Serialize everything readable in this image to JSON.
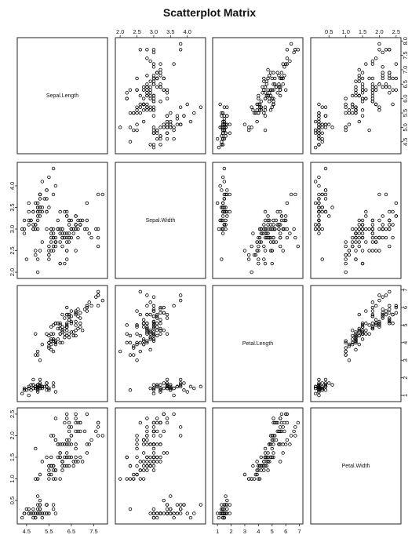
{
  "chart_data": {
    "type": "scatter",
    "title": "Scatterplot Matrix",
    "variables": [
      {
        "name": "Sepal.Length",
        "range": [
          4.3,
          7.9
        ],
        "ticks": [
          4.5,
          5.5,
          6.5,
          7.5
        ],
        "ticks_outer": [
          4.5,
          5.0,
          5.5,
          6.0,
          6.5,
          7.0,
          7.5,
          8.0
        ]
      },
      {
        "name": "Sepal.Width",
        "range": [
          2.0,
          4.4
        ],
        "ticks": [
          2.0,
          2.5,
          3.0,
          3.5,
          4.0
        ]
      },
      {
        "name": "Petal.Length",
        "range": [
          1.0,
          6.9
        ],
        "ticks": [
          1,
          2,
          3,
          4,
          5,
          6,
          7
        ]
      },
      {
        "name": "Petal.Width",
        "range": [
          0.1,
          2.5
        ],
        "ticks": [
          0.5,
          1.0,
          1.5,
          2.0,
          2.5
        ]
      }
    ],
    "points": [
      [
        5.1,
        3.5,
        1.4,
        0.2
      ],
      [
        4.9,
        3.0,
        1.4,
        0.2
      ],
      [
        4.7,
        3.2,
        1.3,
        0.2
      ],
      [
        4.6,
        3.1,
        1.5,
        0.2
      ],
      [
        5.0,
        3.6,
        1.4,
        0.2
      ],
      [
        5.4,
        3.9,
        1.7,
        0.4
      ],
      [
        4.6,
        3.4,
        1.4,
        0.3
      ],
      [
        5.0,
        3.4,
        1.5,
        0.2
      ],
      [
        4.4,
        2.9,
        1.4,
        0.2
      ],
      [
        4.9,
        3.1,
        1.5,
        0.1
      ],
      [
        5.4,
        3.7,
        1.5,
        0.2
      ],
      [
        4.8,
        3.4,
        1.6,
        0.2
      ],
      [
        4.8,
        3.0,
        1.4,
        0.1
      ],
      [
        4.3,
        3.0,
        1.1,
        0.1
      ],
      [
        5.8,
        4.0,
        1.2,
        0.2
      ],
      [
        5.7,
        4.4,
        1.5,
        0.4
      ],
      [
        5.4,
        3.9,
        1.3,
        0.4
      ],
      [
        5.1,
        3.5,
        1.4,
        0.3
      ],
      [
        5.7,
        3.8,
        1.7,
        0.3
      ],
      [
        5.1,
        3.8,
        1.5,
        0.3
      ],
      [
        5.4,
        3.4,
        1.7,
        0.2
      ],
      [
        5.1,
        3.7,
        1.5,
        0.4
      ],
      [
        4.6,
        3.6,
        1.0,
        0.2
      ],
      [
        5.1,
        3.3,
        1.7,
        0.5
      ],
      [
        4.8,
        3.4,
        1.9,
        0.2
      ],
      [
        5.0,
        3.0,
        1.6,
        0.2
      ],
      [
        5.0,
        3.4,
        1.6,
        0.4
      ],
      [
        5.2,
        3.5,
        1.5,
        0.2
      ],
      [
        5.2,
        3.4,
        1.4,
        0.2
      ],
      [
        4.7,
        3.2,
        1.6,
        0.2
      ],
      [
        4.8,
        3.1,
        1.6,
        0.2
      ],
      [
        5.4,
        3.4,
        1.5,
        0.4
      ],
      [
        5.2,
        4.1,
        1.5,
        0.1
      ],
      [
        5.5,
        4.2,
        1.4,
        0.2
      ],
      [
        4.9,
        3.1,
        1.5,
        0.2
      ],
      [
        5.0,
        3.2,
        1.2,
        0.2
      ],
      [
        5.5,
        3.5,
        1.3,
        0.2
      ],
      [
        4.9,
        3.6,
        1.4,
        0.1
      ],
      [
        4.4,
        3.0,
        1.3,
        0.2
      ],
      [
        5.1,
        3.4,
        1.5,
        0.2
      ],
      [
        5.0,
        3.5,
        1.3,
        0.3
      ],
      [
        4.5,
        2.3,
        1.3,
        0.3
      ],
      [
        4.4,
        3.2,
        1.3,
        0.2
      ],
      [
        5.0,
        3.5,
        1.6,
        0.6
      ],
      [
        5.1,
        3.8,
        1.9,
        0.4
      ],
      [
        4.8,
        3.0,
        1.4,
        0.3
      ],
      [
        5.1,
        3.8,
        1.6,
        0.2
      ],
      [
        4.6,
        3.2,
        1.4,
        0.2
      ],
      [
        5.3,
        3.7,
        1.5,
        0.2
      ],
      [
        5.0,
        3.3,
        1.4,
        0.2
      ],
      [
        7.0,
        3.2,
        4.7,
        1.4
      ],
      [
        6.4,
        3.2,
        4.5,
        1.5
      ],
      [
        6.9,
        3.1,
        4.9,
        1.5
      ],
      [
        5.5,
        2.3,
        4.0,
        1.3
      ],
      [
        6.5,
        2.8,
        4.6,
        1.5
      ],
      [
        5.7,
        2.8,
        4.5,
        1.3
      ],
      [
        6.3,
        3.3,
        4.7,
        1.6
      ],
      [
        4.9,
        2.4,
        3.3,
        1.0
      ],
      [
        6.6,
        2.9,
        4.6,
        1.3
      ],
      [
        5.2,
        2.7,
        3.9,
        1.4
      ],
      [
        5.0,
        2.0,
        3.5,
        1.0
      ],
      [
        5.9,
        3.0,
        4.2,
        1.5
      ],
      [
        6.0,
        2.2,
        4.0,
        1.0
      ],
      [
        6.1,
        2.9,
        4.7,
        1.4
      ],
      [
        5.6,
        2.9,
        3.6,
        1.3
      ],
      [
        6.7,
        3.1,
        4.4,
        1.4
      ],
      [
        5.6,
        3.0,
        4.5,
        1.5
      ],
      [
        5.8,
        2.7,
        4.1,
        1.0
      ],
      [
        6.2,
        2.2,
        4.5,
        1.5
      ],
      [
        5.6,
        2.5,
        3.9,
        1.1
      ],
      [
        5.9,
        3.2,
        4.8,
        1.8
      ],
      [
        6.1,
        2.8,
        4.0,
        1.3
      ],
      [
        6.3,
        2.5,
        4.9,
        1.5
      ],
      [
        6.1,
        2.8,
        4.7,
        1.2
      ],
      [
        6.4,
        2.9,
        4.3,
        1.3
      ],
      [
        6.6,
        3.0,
        4.4,
        1.4
      ],
      [
        6.8,
        2.8,
        4.8,
        1.4
      ],
      [
        6.7,
        3.0,
        5.0,
        1.7
      ],
      [
        6.0,
        2.9,
        4.5,
        1.5
      ],
      [
        5.7,
        2.6,
        3.5,
        1.0
      ],
      [
        5.5,
        2.4,
        3.8,
        1.1
      ],
      [
        5.5,
        2.4,
        3.7,
        1.0
      ],
      [
        5.8,
        2.7,
        3.9,
        1.2
      ],
      [
        6.0,
        2.7,
        5.1,
        1.6
      ],
      [
        5.4,
        3.0,
        4.5,
        1.5
      ],
      [
        6.0,
        3.4,
        4.5,
        1.6
      ],
      [
        6.7,
        3.1,
        4.7,
        1.5
      ],
      [
        6.3,
        2.3,
        4.4,
        1.3
      ],
      [
        5.6,
        3.0,
        4.1,
        1.3
      ],
      [
        5.5,
        2.5,
        4.0,
        1.3
      ],
      [
        5.5,
        2.6,
        4.4,
        1.2
      ],
      [
        6.1,
        3.0,
        4.6,
        1.4
      ],
      [
        5.8,
        2.6,
        4.0,
        1.2
      ],
      [
        5.0,
        2.3,
        3.3,
        1.0
      ],
      [
        5.6,
        2.7,
        4.2,
        1.3
      ],
      [
        5.7,
        3.0,
        4.2,
        1.2
      ],
      [
        5.7,
        2.9,
        4.2,
        1.3
      ],
      [
        6.2,
        2.9,
        4.3,
        1.3
      ],
      [
        5.1,
        2.5,
        3.0,
        1.1
      ],
      [
        5.7,
        2.8,
        4.1,
        1.3
      ],
      [
        6.3,
        3.3,
        6.0,
        2.5
      ],
      [
        5.8,
        2.7,
        5.1,
        1.9
      ],
      [
        7.1,
        3.0,
        5.9,
        2.1
      ],
      [
        6.3,
        2.9,
        5.6,
        1.8
      ],
      [
        6.5,
        3.0,
        5.8,
        2.2
      ],
      [
        7.6,
        3.0,
        6.6,
        2.1
      ],
      [
        4.9,
        2.5,
        4.5,
        1.7
      ],
      [
        7.3,
        2.9,
        6.3,
        1.8
      ],
      [
        6.7,
        2.5,
        5.8,
        1.8
      ],
      [
        7.2,
        3.6,
        6.1,
        2.5
      ],
      [
        6.5,
        3.2,
        5.1,
        2.0
      ],
      [
        6.4,
        2.7,
        5.3,
        1.9
      ],
      [
        6.8,
        3.0,
        5.5,
        2.1
      ],
      [
        5.7,
        2.5,
        5.0,
        2.0
      ],
      [
        5.8,
        2.8,
        5.1,
        2.4
      ],
      [
        6.4,
        3.2,
        5.3,
        2.3
      ],
      [
        6.5,
        3.0,
        5.5,
        1.8
      ],
      [
        7.7,
        3.8,
        6.7,
        2.2
      ],
      [
        7.7,
        2.6,
        6.9,
        2.3
      ],
      [
        6.0,
        2.2,
        5.0,
        1.5
      ],
      [
        6.9,
        3.2,
        5.7,
        2.3
      ],
      [
        5.6,
        2.8,
        4.9,
        2.0
      ],
      [
        7.7,
        2.8,
        6.7,
        2.0
      ],
      [
        6.3,
        2.7,
        4.9,
        1.8
      ],
      [
        6.7,
        3.3,
        5.7,
        2.1
      ],
      [
        7.2,
        3.2,
        6.0,
        1.8
      ],
      [
        6.2,
        2.8,
        4.8,
        1.8
      ],
      [
        6.1,
        3.0,
        4.9,
        1.8
      ],
      [
        6.4,
        2.8,
        5.6,
        2.1
      ],
      [
        7.2,
        3.0,
        5.8,
        1.6
      ],
      [
        7.4,
        2.8,
        6.1,
        1.9
      ],
      [
        7.9,
        3.8,
        6.4,
        2.0
      ],
      [
        6.4,
        2.8,
        5.6,
        2.2
      ],
      [
        6.3,
        2.8,
        5.1,
        1.5
      ],
      [
        6.1,
        2.6,
        5.6,
        1.4
      ],
      [
        7.7,
        3.0,
        6.1,
        2.3
      ],
      [
        6.3,
        3.4,
        5.6,
        2.4
      ],
      [
        6.4,
        3.1,
        5.5,
        1.8
      ],
      [
        6.0,
        3.0,
        4.8,
        1.8
      ],
      [
        6.9,
        3.1,
        5.4,
        2.1
      ],
      [
        6.7,
        3.1,
        5.6,
        2.4
      ],
      [
        6.9,
        3.1,
        5.1,
        2.3
      ],
      [
        5.8,
        2.7,
        5.1,
        1.9
      ],
      [
        6.8,
        3.2,
        5.9,
        2.3
      ],
      [
        6.7,
        3.3,
        5.7,
        2.5
      ],
      [
        6.7,
        3.0,
        5.2,
        2.3
      ],
      [
        6.3,
        2.5,
        5.0,
        1.9
      ],
      [
        6.5,
        3.0,
        5.2,
        2.0
      ],
      [
        6.2,
        3.4,
        5.4,
        2.3
      ],
      [
        5.9,
        3.0,
        5.1,
        1.8
      ]
    ],
    "grid": false,
    "legend": "none"
  }
}
